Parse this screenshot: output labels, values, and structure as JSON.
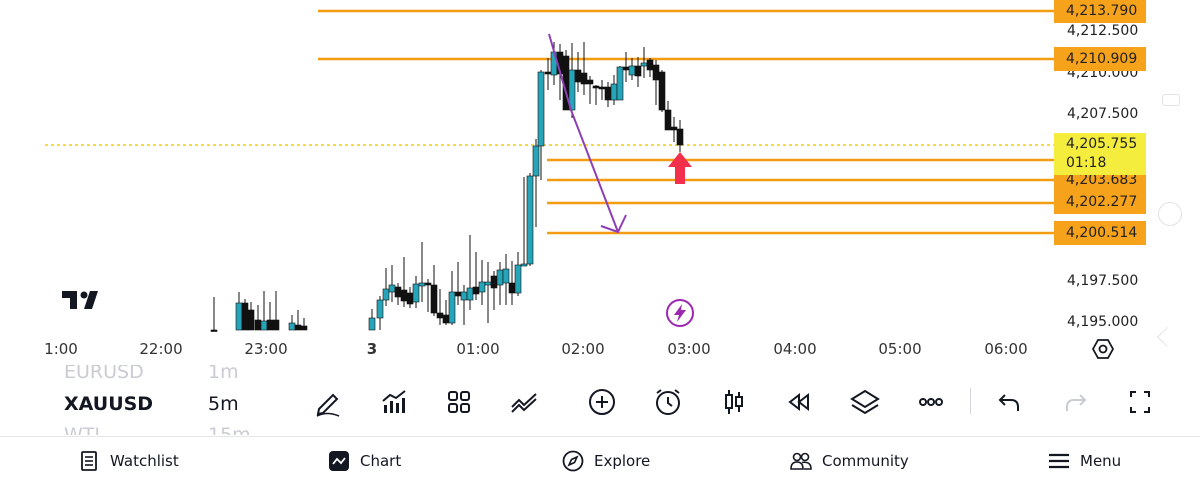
{
  "chart": {
    "symbol": "XAUUSD",
    "interval": "5m",
    "price_axis": [
      "4,212.500",
      "4,210.000",
      "4,207.500",
      "4,197.500",
      "4,195.000"
    ],
    "time_axis": [
      "1:00",
      "22:00",
      "23:00",
      "3",
      "01:00",
      "02:00",
      "03:00",
      "04:00",
      "05:00",
      "06:00"
    ],
    "level_tags": [
      "4,213.790",
      "4,210.909",
      "4,203.683",
      "4,202.277",
      "4,200.514"
    ],
    "current_price": "4,205.755",
    "countdown": "01:18",
    "colors": {
      "bull": "#26a5b9",
      "bear": "#111111",
      "level_line": "#f39c12",
      "level_tag": "#f7a21b",
      "current_tag": "#f5ed3d",
      "arrow_purple": "#8e3fb5",
      "arrow_red": "#f2304b"
    }
  },
  "symbol_picker": {
    "prev_symbol": "EURUSD",
    "prev_interval": "1m",
    "current_symbol": "XAUUSD",
    "current_interval": "5m",
    "next_symbol": "WTI",
    "next_interval": "15m"
  },
  "toolbar": {
    "items": [
      "draw-pen-icon",
      "indicators-icon",
      "layouts-icon",
      "templates-icon",
      "add-icon",
      "alert-clock-icon",
      "candles-icon",
      "replay-icon",
      "layers-icon",
      "more-icon",
      "undo-icon",
      "redo-icon",
      "fullscreen-icon"
    ]
  },
  "bottom_nav": {
    "watchlist": "Watchlist",
    "chart": "Chart",
    "explore": "Explore",
    "community": "Community",
    "menu": "Menu"
  }
}
